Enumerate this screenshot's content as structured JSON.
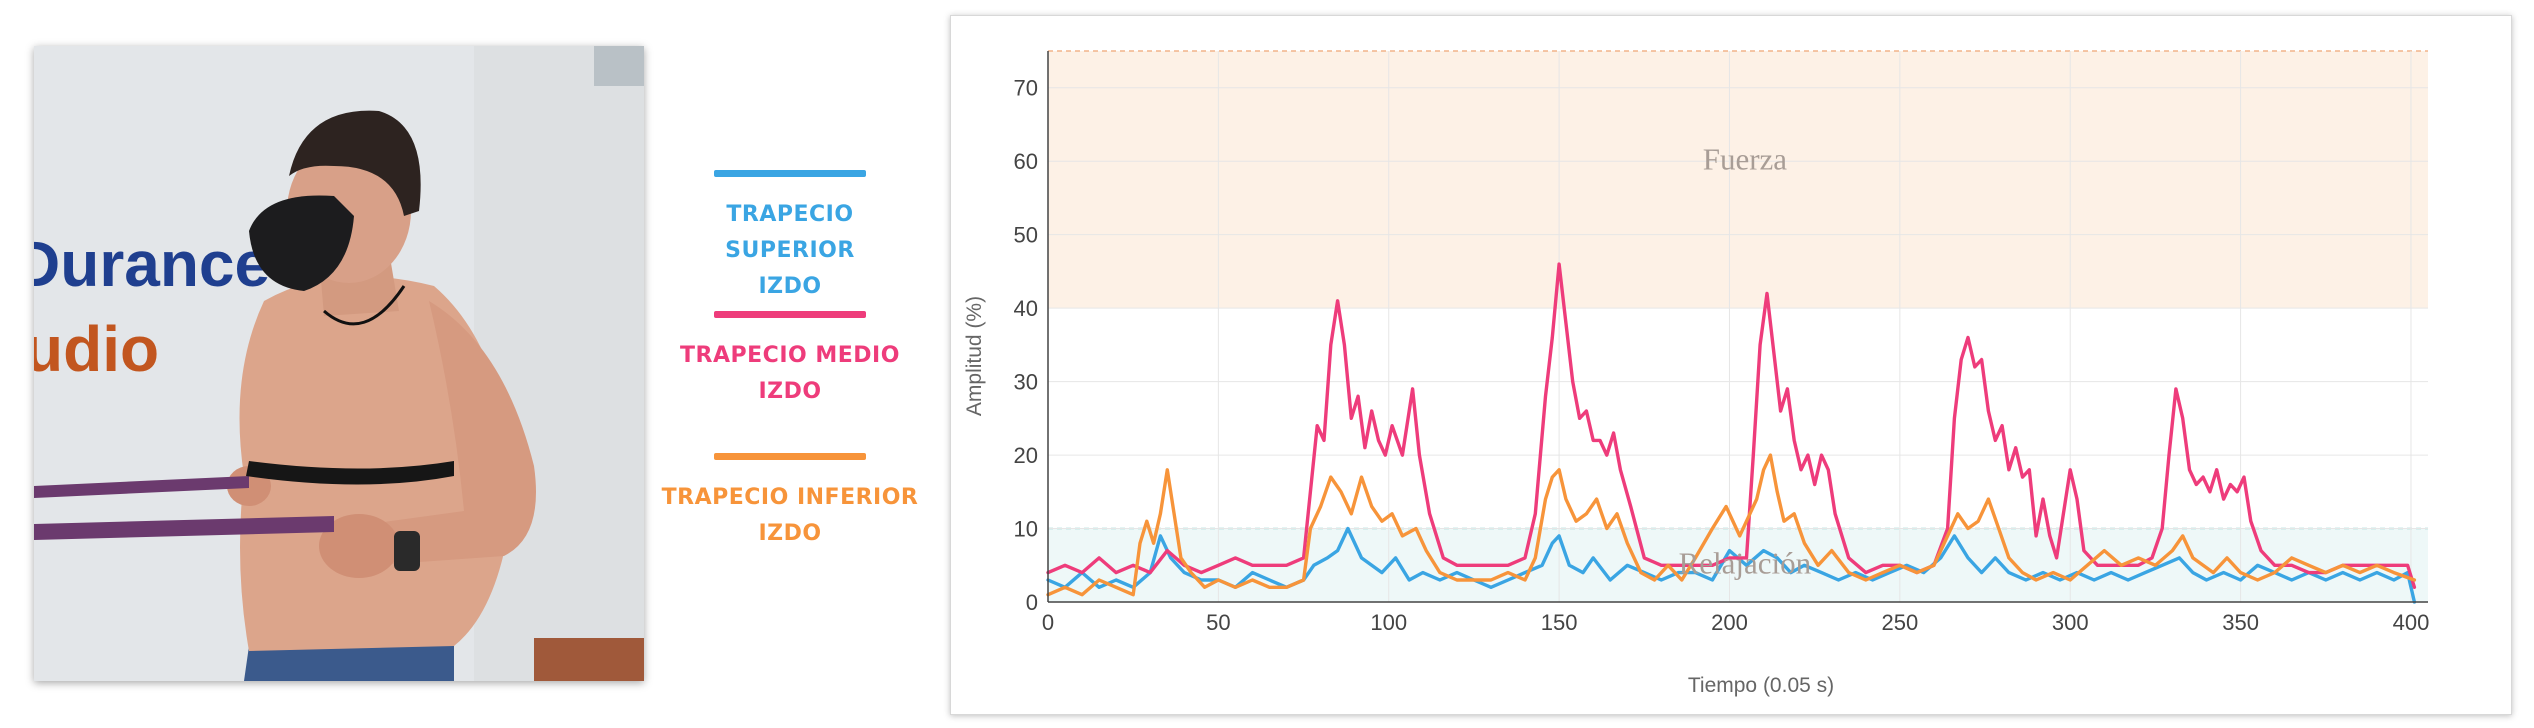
{
  "photo": {
    "alt": "Man doing resistance band rowing exercise with EMG chest strap",
    "wall_text_line1": "Durance",
    "wall_text_line2": "udio"
  },
  "legend": {
    "items": [
      {
        "line1": "TRAPECIO SUPERIOR",
        "line2": "IZDO",
        "color": "#3aa5e3"
      },
      {
        "line1": "TRAPECIO MEDIO",
        "line2": "IZDO",
        "color": "#ee3c7b"
      },
      {
        "line1": "TRAPECIO INFERIOR",
        "line2": "IZDO",
        "color": "#f7943a"
      }
    ]
  },
  "chart_data": {
    "type": "line",
    "xlabel": "Tiempo (0.05 s)",
    "ylabel": "Amplitud (%)",
    "xlim": [
      0,
      405
    ],
    "ylim": [
      0,
      75
    ],
    "xticks": [
      0,
      50,
      100,
      150,
      200,
      250,
      300,
      350,
      400
    ],
    "yticks": [
      0,
      10,
      20,
      30,
      40,
      50,
      60,
      70
    ],
    "grid": true,
    "bands": [
      {
        "label": "Fuerza",
        "from": 40,
        "to": 75,
        "color": "#fdf1e6",
        "border": "#f2b48a"
      },
      {
        "label": "Relajación",
        "from": 0,
        "to": 10,
        "color": "#eef8f8",
        "border": "#8fd3d0"
      }
    ],
    "series": [
      {
        "name": "TRAPECIO SUPERIOR IZDO",
        "color": "#3aa5e3",
        "points": [
          [
            0,
            3
          ],
          [
            5,
            2
          ],
          [
            10,
            4
          ],
          [
            15,
            2
          ],
          [
            20,
            3
          ],
          [
            25,
            2
          ],
          [
            30,
            4
          ],
          [
            33,
            9
          ],
          [
            36,
            6
          ],
          [
            40,
            4
          ],
          [
            45,
            3
          ],
          [
            50,
            3
          ],
          [
            55,
            2
          ],
          [
            60,
            4
          ],
          [
            65,
            3
          ],
          [
            70,
            2
          ],
          [
            75,
            3
          ],
          [
            78,
            5
          ],
          [
            82,
            6
          ],
          [
            85,
            7
          ],
          [
            88,
            10
          ],
          [
            92,
            6
          ],
          [
            95,
            5
          ],
          [
            98,
            4
          ],
          [
            102,
            6
          ],
          [
            106,
            3
          ],
          [
            110,
            4
          ],
          [
            115,
            3
          ],
          [
            120,
            4
          ],
          [
            125,
            3
          ],
          [
            130,
            2
          ],
          [
            135,
            3
          ],
          [
            140,
            4
          ],
          [
            145,
            5
          ],
          [
            148,
            8
          ],
          [
            150,
            9
          ],
          [
            153,
            5
          ],
          [
            157,
            4
          ],
          [
            160,
            6
          ],
          [
            165,
            3
          ],
          [
            170,
            5
          ],
          [
            175,
            4
          ],
          [
            180,
            3
          ],
          [
            185,
            4
          ],
          [
            190,
            4
          ],
          [
            195,
            3
          ],
          [
            200,
            7
          ],
          [
            205,
            5
          ],
          [
            210,
            7
          ],
          [
            214,
            6
          ],
          [
            218,
            4
          ],
          [
            222,
            5
          ],
          [
            227,
            4
          ],
          [
            232,
            3
          ],
          [
            237,
            4
          ],
          [
            242,
            3
          ],
          [
            247,
            4
          ],
          [
            252,
            5
          ],
          [
            257,
            4
          ],
          [
            262,
            6
          ],
          [
            266,
            9
          ],
          [
            270,
            6
          ],
          [
            274,
            4
          ],
          [
            278,
            6
          ],
          [
            282,
            4
          ],
          [
            287,
            3
          ],
          [
            292,
            4
          ],
          [
            297,
            3
          ],
          [
            302,
            4
          ],
          [
            307,
            3
          ],
          [
            312,
            4
          ],
          [
            317,
            3
          ],
          [
            322,
            4
          ],
          [
            327,
            5
          ],
          [
            332,
            6
          ],
          [
            336,
            4
          ],
          [
            340,
            3
          ],
          [
            345,
            4
          ],
          [
            350,
            3
          ],
          [
            355,
            5
          ],
          [
            360,
            4
          ],
          [
            365,
            3
          ],
          [
            370,
            4
          ],
          [
            375,
            3
          ],
          [
            380,
            4
          ],
          [
            385,
            3
          ],
          [
            390,
            4
          ],
          [
            395,
            3
          ],
          [
            399,
            4
          ],
          [
            401,
            0
          ]
        ]
      },
      {
        "name": "TRAPECIO MEDIO IZDO",
        "color": "#ee3c7b",
        "points": [
          [
            0,
            4
          ],
          [
            5,
            5
          ],
          [
            10,
            4
          ],
          [
            15,
            6
          ],
          [
            20,
            4
          ],
          [
            25,
            5
          ],
          [
            30,
            4
          ],
          [
            35,
            7
          ],
          [
            40,
            5
          ],
          [
            45,
            4
          ],
          [
            50,
            5
          ],
          [
            55,
            6
          ],
          [
            60,
            5
          ],
          [
            65,
            5
          ],
          [
            70,
            5
          ],
          [
            75,
            6
          ],
          [
            77,
            15
          ],
          [
            79,
            24
          ],
          [
            81,
            22
          ],
          [
            83,
            35
          ],
          [
            85,
            41
          ],
          [
            87,
            35
          ],
          [
            89,
            25
          ],
          [
            91,
            28
          ],
          [
            93,
            21
          ],
          [
            95,
            26
          ],
          [
            97,
            22
          ],
          [
            99,
            20
          ],
          [
            101,
            24
          ],
          [
            104,
            20
          ],
          [
            107,
            29
          ],
          [
            109,
            20
          ],
          [
            112,
            12
          ],
          [
            116,
            6
          ],
          [
            120,
            5
          ],
          [
            125,
            5
          ],
          [
            130,
            5
          ],
          [
            135,
            5
          ],
          [
            140,
            6
          ],
          [
            143,
            12
          ],
          [
            146,
            28
          ],
          [
            148,
            36
          ],
          [
            150,
            46
          ],
          [
            152,
            38
          ],
          [
            154,
            30
          ],
          [
            156,
            25
          ],
          [
            158,
            26
          ],
          [
            160,
            22
          ],
          [
            162,
            22
          ],
          [
            164,
            20
          ],
          [
            166,
            23
          ],
          [
            168,
            18
          ],
          [
            171,
            13
          ],
          [
            175,
            6
          ],
          [
            180,
            5
          ],
          [
            185,
            5
          ],
          [
            190,
            5
          ],
          [
            195,
            5
          ],
          [
            200,
            6
          ],
          [
            205,
            6
          ],
          [
            207,
            20
          ],
          [
            209,
            35
          ],
          [
            211,
            42
          ],
          [
            213,
            34
          ],
          [
            215,
            26
          ],
          [
            217,
            29
          ],
          [
            219,
            22
          ],
          [
            221,
            18
          ],
          [
            223,
            20
          ],
          [
            225,
            16
          ],
          [
            227,
            20
          ],
          [
            229,
            18
          ],
          [
            231,
            12
          ],
          [
            235,
            6
          ],
          [
            240,
            4
          ],
          [
            245,
            5
          ],
          [
            250,
            5
          ],
          [
            255,
            4
          ],
          [
            260,
            5
          ],
          [
            264,
            10
          ],
          [
            266,
            25
          ],
          [
            268,
            33
          ],
          [
            270,
            36
          ],
          [
            272,
            32
          ],
          [
            274,
            33
          ],
          [
            276,
            26
          ],
          [
            278,
            22
          ],
          [
            280,
            24
          ],
          [
            282,
            18
          ],
          [
            284,
            21
          ],
          [
            286,
            17
          ],
          [
            288,
            18
          ],
          [
            290,
            9
          ],
          [
            292,
            14
          ],
          [
            294,
            9
          ],
          [
            296,
            6
          ],
          [
            298,
            12
          ],
          [
            300,
            18
          ],
          [
            302,
            14
          ],
          [
            304,
            7
          ],
          [
            308,
            5
          ],
          [
            312,
            5
          ],
          [
            316,
            5
          ],
          [
            320,
            5
          ],
          [
            324,
            6
          ],
          [
            327,
            10
          ],
          [
            329,
            20
          ],
          [
            331,
            29
          ],
          [
            333,
            25
          ],
          [
            335,
            18
          ],
          [
            337,
            16
          ],
          [
            339,
            17
          ],
          [
            341,
            15
          ],
          [
            343,
            18
          ],
          [
            345,
            14
          ],
          [
            347,
            16
          ],
          [
            349,
            15
          ],
          [
            351,
            17
          ],
          [
            353,
            11
          ],
          [
            356,
            7
          ],
          [
            360,
            5
          ],
          [
            365,
            5
          ],
          [
            370,
            4
          ],
          [
            375,
            4
          ],
          [
            380,
            5
          ],
          [
            385,
            5
          ],
          [
            390,
            5
          ],
          [
            395,
            5
          ],
          [
            399,
            5
          ],
          [
            401,
            2
          ]
        ]
      },
      {
        "name": "TRAPECIO INFERIOR IZDO",
        "color": "#f7943a",
        "points": [
          [
            0,
            1
          ],
          [
            5,
            2
          ],
          [
            10,
            1
          ],
          [
            15,
            3
          ],
          [
            20,
            2
          ],
          [
            25,
            1
          ],
          [
            27,
            8
          ],
          [
            29,
            11
          ],
          [
            31,
            8
          ],
          [
            33,
            12
          ],
          [
            35,
            18
          ],
          [
            37,
            12
          ],
          [
            39,
            6
          ],
          [
            42,
            4
          ],
          [
            46,
            2
          ],
          [
            50,
            3
          ],
          [
            55,
            2
          ],
          [
            60,
            3
          ],
          [
            65,
            2
          ],
          [
            70,
            2
          ],
          [
            75,
            3
          ],
          [
            77,
            10
          ],
          [
            80,
            13
          ],
          [
            83,
            17
          ],
          [
            86,
            15
          ],
          [
            89,
            12
          ],
          [
            92,
            17
          ],
          [
            95,
            13
          ],
          [
            98,
            11
          ],
          [
            101,
            12
          ],
          [
            104,
            9
          ],
          [
            108,
            10
          ],
          [
            111,
            7
          ],
          [
            115,
            4
          ],
          [
            120,
            3
          ],
          [
            125,
            3
          ],
          [
            130,
            3
          ],
          [
            135,
            4
          ],
          [
            140,
            3
          ],
          [
            143,
            6
          ],
          [
            146,
            14
          ],
          [
            148,
            17
          ],
          [
            150,
            18
          ],
          [
            152,
            14
          ],
          [
            155,
            11
          ],
          [
            158,
            12
          ],
          [
            161,
            14
          ],
          [
            164,
            10
          ],
          [
            167,
            12
          ],
          [
            170,
            8
          ],
          [
            174,
            4
          ],
          [
            178,
            3
          ],
          [
            182,
            5
          ],
          [
            186,
            3
          ],
          [
            190,
            6
          ],
          [
            195,
            10
          ],
          [
            199,
            13
          ],
          [
            203,
            9
          ],
          [
            206,
            12
          ],
          [
            208,
            14
          ],
          [
            210,
            18
          ],
          [
            212,
            20
          ],
          [
            214,
            15
          ],
          [
            216,
            11
          ],
          [
            219,
            12
          ],
          [
            222,
            8
          ],
          [
            226,
            5
          ],
          [
            230,
            7
          ],
          [
            235,
            4
          ],
          [
            240,
            3
          ],
          [
            245,
            4
          ],
          [
            250,
            5
          ],
          [
            255,
            4
          ],
          [
            260,
            5
          ],
          [
            264,
            9
          ],
          [
            267,
            12
          ],
          [
            270,
            10
          ],
          [
            273,
            11
          ],
          [
            276,
            14
          ],
          [
            279,
            10
          ],
          [
            282,
            6
          ],
          [
            286,
            4
          ],
          [
            290,
            3
          ],
          [
            295,
            4
          ],
          [
            300,
            3
          ],
          [
            305,
            5
          ],
          [
            310,
            7
          ],
          [
            315,
            5
          ],
          [
            320,
            6
          ],
          [
            325,
            5
          ],
          [
            330,
            7
          ],
          [
            333,
            9
          ],
          [
            336,
            6
          ],
          [
            339,
            5
          ],
          [
            342,
            4
          ],
          [
            346,
            6
          ],
          [
            350,
            4
          ],
          [
            355,
            3
          ],
          [
            360,
            4
          ],
          [
            365,
            6
          ],
          [
            370,
            5
          ],
          [
            375,
            4
          ],
          [
            380,
            5
          ],
          [
            385,
            4
          ],
          [
            390,
            5
          ],
          [
            395,
            4
          ],
          [
            401,
            3
          ]
        ]
      }
    ]
  }
}
